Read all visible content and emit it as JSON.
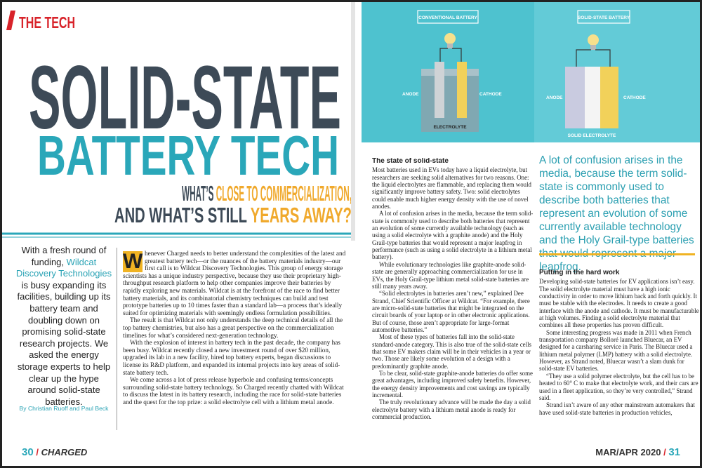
{
  "header": {
    "section": "THE TECH"
  },
  "title": {
    "line1": "SOLID-STATE",
    "line2": "BATTERY TECH"
  },
  "subtitle": {
    "line1a": "WHAT’S ",
    "line1b": "CLOSE TO COMMERCIALIZATION,",
    "line2a": "AND WHAT’S STILL ",
    "line2b": "YEARS AWAY?"
  },
  "intro": {
    "before": "With a fresh round of funding, ",
    "company": "Wildcat Discovery Technologies",
    "after": " is busy expanding its facilities, building up its battery team and doubling down on promising solid-state research projects. We asked the energy storage experts to help clear up the hype around solid-state batteries.",
    "byline": "By Christian Ruoff and Paul Beck"
  },
  "article": {
    "dropcap": "W",
    "paragraphs": [
      "henever Charged needs to better understand the complexities of the latest and greatest battery tech—or the nuances of the battery materials industry—our first call is to Wildcat Discovery Technologies. This group of energy storage scientists has a unique industry perspective, because they use their proprietary high-throughput research platform to help other companies improve their batteries by rapidly exploring new materials. Wildcat is at the forefront of the race to find better battery materials, and its combinatorial chemistry techniques can build and test prototype batteries up to 10 times faster than a standard lab—a process that’s ideally suited for optimizing materials with seemingly endless formulation possibilities.",
      "The result is that Wildcat not only understands the deep technical details of all the top battery chemistries, but also has a great perspective on the commercialization timelines for what’s considered next-generation technology.",
      "With the explosion of interest in battery tech in the past decade, the company has been busy. Wildcat recently closed a new investment round of over $20 million, upgraded its lab in a new facility, hired top battery experts, began discussions to license its R&D platform, and expanded its internal projects into key areas of solid-state battery tech.",
      "We come across a lot of press release hyperbole and confusing terms/concepts surrounding solid-state battery technology. So Charged recently chatted with Wildcat to discuss the latest in its battery research, including the race for solid-state batteries and the quest for the top prize: a solid electrolyte cell with a lithium metal anode."
    ]
  },
  "illustration": {
    "conventional": {
      "title": "CONVENTIONAL BATTERY",
      "anode": "ANODE",
      "cathode": "CATHODE",
      "electrolyte": "ELECTROLYTE"
    },
    "solid": {
      "title": "SOLID-STATE BATTERY",
      "anode": "ANODE",
      "cathode": "CATHODE",
      "electrolyte": "SOLID ELECTROLYTE"
    }
  },
  "section1": {
    "heading": "The state of solid-state",
    "paragraphs": [
      "Most batteries used in EVs today have a liquid electrolyte, but researchers are seeking solid alternatives for two reasons. One: the liquid electrolytes are flammable, and replacing them would significantly improve battery safety. Two: solid electrolytes could enable much higher energy density with the use of novel anodes.",
      "A lot of confusion arises in the media, because the term solid-state is commonly used to describe both batteries that represent an evolution of some currently available technology (such as using a solid electrolyte with a graphite anode) and the Holy Grail-type batteries that would represent a major leapfrog in performance (such as using a solid electrolyte in a lithium metal battery).",
      "While evolutionary technologies like graphite-anode solid-state are generally approaching commercialization for use in EVs, the Holy Grail-type lithium metal solid-state batteries are still many years away.",
      "“Solid electrolytes in batteries aren’t new,” explained Dee Strand, Chief Scientific Officer at Wildcat. “For example, there are micro-solid-state batteries that might be integrated on the circuit boards of your laptop or in other electronic applications. But of course, those aren’t appropriate for large-format automotive batteries.”",
      "Most of these types of batteries fall into the solid-state standard-anode category. This is also true of the solid-state cells that some EV makers claim will be in their vehicles in a year or two. Those are likely some evolution of a design with a predominantly graphite anode.",
      "To be clear, solid-state graphite-anode batteries do offer some great advantages, including improved safety benefits. However, the energy density improvements and cost savings are typically incremental.",
      "The truly revolutionary advance will be made the day a solid electrolyte battery with a lithium metal anode is ready for commercial production."
    ]
  },
  "pullquote": "A lot of confusion arises in the media, because the term solid-state is commonly used to describe both batteries that represent an evolution of some currently available technology and the Holy Grail-type batteries that would represent a major leapfrog.",
  "section2": {
    "heading": "Putting in the hard work",
    "paragraphs": [
      "Developing solid-state batteries for EV applications isn’t easy. The solid electrolyte material must have a high ionic conductivity in order to move lithium back and forth quickly. It must be stable with the electrodes. It needs to create a good interface with the anode and cathode. It must be manufacturable at high volumes. Finding a solid electrolyte material that combines all these properties has proven difficult.",
      "Some interesting progress was made in 2011 when French transportation company Bolloré launched Bluecar, an EV designed for a carsharing service in Paris. The Bluecar used a lithium metal polymer (LMP) battery with a solid electrolyte. However, as Strand noted, Bluecar wasn’t a slam dunk for solid-state EV batteries.",
      "“They use a solid polymer electrolyte, but the cell has to be heated to 60° C to make that electrolyte work, and their cars are used in a fleet application, so they’re very controlled,” Strand said.",
      "Strand isn’t aware of any other mainstream automakers that have used solid-state batteries in production vehicles,"
    ]
  },
  "footer": {
    "left_page": "30",
    "left_brand": "CHARGED",
    "right_date": "MAR/APR 2020",
    "right_page": "31"
  }
}
